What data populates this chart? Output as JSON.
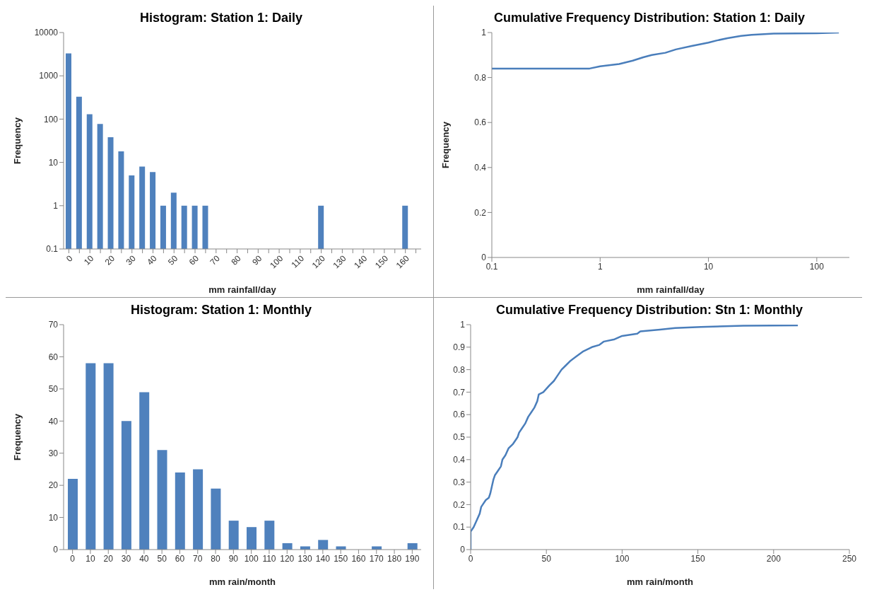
{
  "chart_data": [
    {
      "type": "bar",
      "title": "Histogram: Station 1: Daily",
      "xlabel": "mm rainfall/day",
      "ylabel": "Frequency",
      "categories": [
        "0",
        null,
        "10",
        null,
        "20",
        null,
        "30",
        null,
        "40",
        null,
        "50",
        null,
        "60",
        null,
        "70",
        null,
        "80",
        null,
        "90",
        null,
        "100",
        null,
        "110",
        null,
        "120",
        null,
        "130",
        null,
        "140",
        null,
        "150",
        null,
        "160",
        null
      ],
      "values": [
        3300,
        330,
        130,
        77,
        38,
        18,
        5,
        8,
        6,
        1,
        2,
        1,
        1,
        1,
        null,
        null,
        null,
        null,
        null,
        null,
        null,
        null,
        null,
        null,
        1,
        null,
        null,
        null,
        null,
        null,
        null,
        null,
        1,
        null
      ],
      "color": "#4f81bd",
      "log": "y",
      "ylim": [
        0.1,
        10000
      ],
      "yticks": [
        0.1,
        1,
        10,
        100,
        1000,
        10000
      ],
      "grid": false,
      "legend": false
    },
    {
      "type": "line",
      "title": "Cumulative Frequency Distribution: Station 1: Daily",
      "xlabel": "mm rainfall/day",
      "ylabel": "Frequency",
      "x": [
        0.1,
        0.8,
        1,
        1.5,
        2,
        2.5,
        3,
        4,
        5,
        7,
        10,
        12,
        15,
        20,
        25,
        40,
        100,
        160
      ],
      "values": [
        0.84,
        0.84,
        0.85,
        0.86,
        0.875,
        0.89,
        0.9,
        0.91,
        0.925,
        0.94,
        0.955,
        0.965,
        0.975,
        0.985,
        0.99,
        0.995,
        0.997,
        1
      ],
      "color": "#4a7ebb",
      "log": "x",
      "xlim": [
        0.1,
        200
      ],
      "xticks": [
        0.1,
        1,
        10,
        100
      ],
      "ylim": [
        0,
        1
      ],
      "yticks": [
        0,
        0.2,
        0.4,
        0.6,
        0.8,
        1
      ],
      "grid": false,
      "legend": false,
      "marker": "none",
      "line_style": "solid"
    },
    {
      "type": "bar",
      "title": "Histogram: Station 1: Monthly",
      "xlabel": "mm rain/month",
      "ylabel": "Frequency",
      "categories": [
        "0",
        "10",
        "20",
        "30",
        "40",
        "50",
        "60",
        "70",
        "80",
        "90",
        "100",
        "110",
        "120",
        "130",
        "140",
        "150",
        "160",
        "170",
        "180",
        "190"
      ],
      "values": [
        22,
        58,
        58,
        40,
        49,
        31,
        24,
        25,
        19,
        9,
        7,
        9,
        2,
        1,
        3,
        1,
        0,
        1,
        0,
        2
      ],
      "color": "#4f81bd",
      "ylim": [
        0,
        70
      ],
      "yticks": [
        0,
        10,
        20,
        30,
        40,
        50,
        60,
        70
      ],
      "grid": false,
      "legend": false
    },
    {
      "type": "line",
      "title": "Cumulative Frequency Distribution: Stn 1: Monthly",
      "xlabel": "mm rain/month",
      "x": [
        0,
        0,
        2,
        4,
        6,
        7,
        8,
        10,
        12,
        13,
        14,
        15,
        16,
        18,
        20,
        21,
        23,
        25,
        28,
        30,
        31,
        32,
        34,
        36,
        38,
        40,
        42,
        44,
        45,
        48,
        52,
        55,
        57,
        60,
        63,
        66,
        70,
        74,
        80,
        85,
        88,
        95,
        100,
        110,
        112,
        125,
        135,
        152,
        180,
        216
      ],
      "values": [
        0,
        0.08,
        0.1,
        0.13,
        0.16,
        0.19,
        0.2,
        0.22,
        0.23,
        0.25,
        0.28,
        0.31,
        0.33,
        0.35,
        0.37,
        0.4,
        0.42,
        0.45,
        0.47,
        0.49,
        0.5,
        0.52,
        0.54,
        0.56,
        0.59,
        0.61,
        0.63,
        0.66,
        0.69,
        0.7,
        0.73,
        0.75,
        0.77,
        0.8,
        0.82,
        0.84,
        0.86,
        0.88,
        0.9,
        0.91,
        0.925,
        0.935,
        0.95,
        0.96,
        0.97,
        0.978,
        0.985,
        0.99,
        0.995,
        0.997
      ],
      "color": "#4a7ebb",
      "xlim": [
        0,
        250
      ],
      "xticks": [
        0,
        50,
        100,
        150,
        200,
        250
      ],
      "ylim": [
        0,
        1
      ],
      "yticks": [
        0,
        0.1,
        0.2,
        0.3,
        0.4,
        0.5,
        0.6,
        0.7,
        0.8,
        0.9,
        1
      ],
      "grid": false,
      "legend": false,
      "marker": "none",
      "line_style": "solid"
    }
  ]
}
